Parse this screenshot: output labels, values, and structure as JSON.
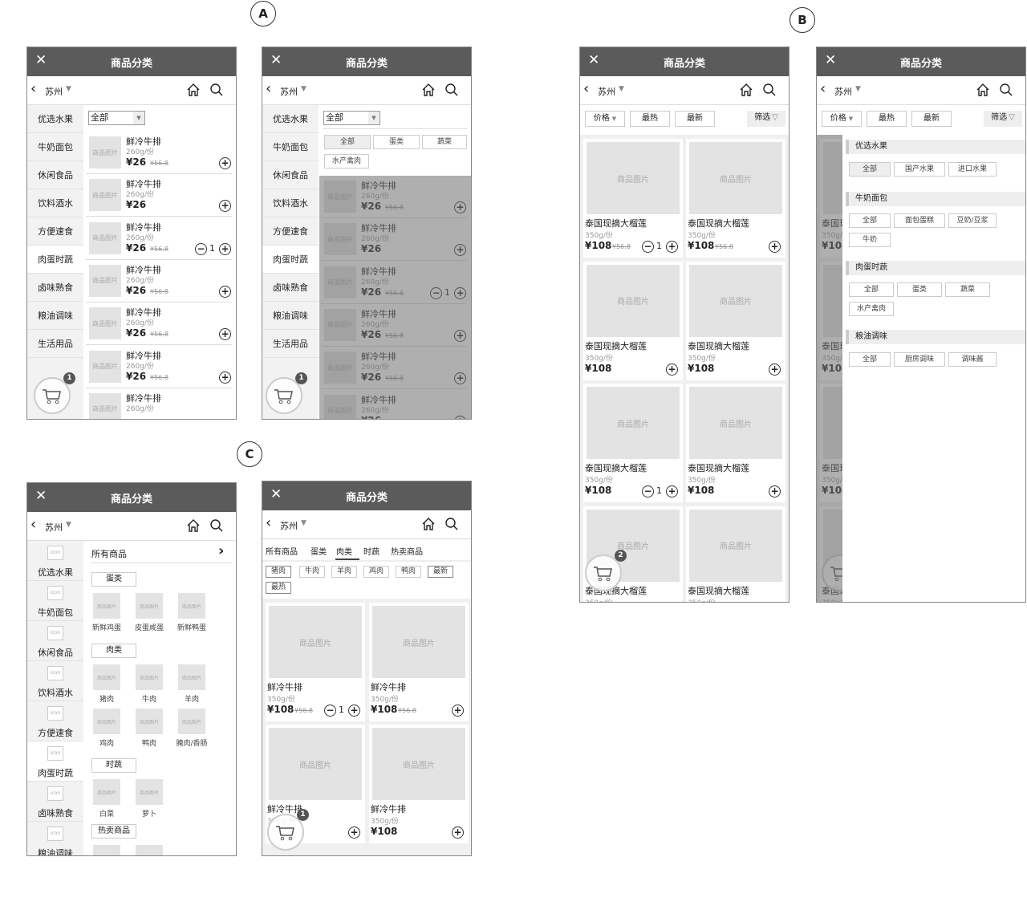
{
  "labels": {
    "a": "A",
    "b": "B",
    "c": "C"
  },
  "common": {
    "title": "商品分类",
    "city": "苏州",
    "close_icon": "close-icon",
    "back_icon": "chevron-left-icon",
    "home_icon": "home-icon",
    "search_icon": "search-icon",
    "header_color": "#5b5b5b"
  },
  "side_categories": [
    "优选水果",
    "牛奶面包",
    "休闲食品",
    "饮料酒水",
    "方便速食",
    "肉蛋时蔬",
    "卤味熟食",
    "粮油调味",
    "生活用品"
  ],
  "active_category": "肉蛋时蔬",
  "screen_a": {
    "dropdown_value": "全部",
    "filter_chips": [
      {
        "label": "全部",
        "selected": true
      },
      {
        "label": "蛋类"
      },
      {
        "label": "蔬菜"
      },
      {
        "label": "水产禽肉"
      }
    ],
    "cart_count": "1",
    "image_placeholder": "商品图片",
    "products": [
      {
        "name": "鲜冷牛排",
        "weight": "260g/份",
        "price": "¥26",
        "old_price": "¥56.8"
      },
      {
        "name": "鲜冷牛排",
        "weight": "260g/份",
        "price": "¥26"
      },
      {
        "name": "鲜冷牛排",
        "weight": "260g/份",
        "price": "¥26",
        "old_price": "¥56.8",
        "qty": "1"
      },
      {
        "name": "鲜冷牛排",
        "weight": "260g/份",
        "price": "¥26",
        "old_price": "¥56.8"
      },
      {
        "name": "鲜冷牛排",
        "weight": "260g/份",
        "price": "¥26",
        "old_price": "¥56.8"
      },
      {
        "name": "鲜冷牛排",
        "weight": "260g/份",
        "price": "¥26",
        "old_price": "¥56.8"
      },
      {
        "name": "鲜冷牛排",
        "weight": "260g/份"
      }
    ]
  },
  "screen_b": {
    "sort_buttons": [
      "价格",
      "最热",
      "最新"
    ],
    "filter_label": "筛选",
    "cart_count": "2",
    "image_placeholder": "商品图片",
    "products": [
      {
        "name": "泰国现摘大榴莲",
        "weight": "350g/份",
        "price": "¥108",
        "old_price": "¥56.8",
        "qty": "1"
      },
      {
        "name": "泰国现摘大榴莲",
        "weight": "350g/份",
        "price": "¥108",
        "old_price": "¥56.8"
      },
      {
        "name": "泰国现摘大榴莲",
        "weight": "350g/份",
        "price": "¥108"
      },
      {
        "name": "泰国现摘大榴莲",
        "weight": "350g/份",
        "price": "¥108"
      },
      {
        "name": "泰国现摘大榴莲",
        "weight": "350g/份",
        "price": "¥108",
        "qty": "1"
      },
      {
        "name": "泰国现摘大榴莲",
        "weight": "350g/份",
        "price": "¥108"
      },
      {
        "name": "泰国现摘大榴莲",
        "weight": "350g/份"
      },
      {
        "name": "泰国现摘大榴莲",
        "weight": "350g/份"
      }
    ],
    "filter_panel": [
      {
        "title": "优选水果",
        "chips": [
          "全部",
          "国产水果",
          "进口水果"
        ]
      },
      {
        "title": "牛奶面包",
        "chips": [
          "全部",
          "面包蛋糕",
          "豆奶/豆浆",
          "牛奶"
        ]
      },
      {
        "title": "肉蛋时蔬",
        "chips": [
          "全部",
          "蛋类",
          "蔬菜",
          "水产禽肉"
        ]
      },
      {
        "title": "粮油调味",
        "chips": [
          "全部",
          "厨房调味",
          "调味酱"
        ]
      }
    ]
  },
  "screen_c": {
    "icon_placeholder": "icon",
    "all_products": "所有商品",
    "image_placeholder": "商品图片",
    "sections": [
      {
        "title": "蛋类",
        "items": [
          "新鲜鸡蛋",
          "皮蛋咸蛋",
          "新鲜鸭蛋"
        ]
      },
      {
        "title": "肉类",
        "items": [
          "猪肉",
          "牛肉",
          "羊肉",
          "鸡肉",
          "鸭肉",
          "腌肉/香肠"
        ]
      },
      {
        "title": "时蔬",
        "items": [
          "白菜",
          "萝卜"
        ]
      },
      {
        "title": "热卖商品",
        "items": [
          "",
          ""
        ]
      }
    ],
    "tabs": [
      "所有商品",
      "蛋类",
      "肉类",
      "时蔬",
      "热卖商品"
    ],
    "active_tab": "肉类",
    "chips": [
      "猪肉",
      "牛肉",
      "羊肉",
      "鸡肉",
      "鸭肉",
      "最新",
      "最热"
    ],
    "selected_chip": "猪肉",
    "cart_count": "1",
    "products": [
      {
        "name": "鲜冷牛排",
        "weight": "350g/份",
        "price": "¥108",
        "old_price": "¥56.8",
        "qty": "1"
      },
      {
        "name": "鲜冷牛排",
        "weight": "350g/份",
        "price": "¥108",
        "old_price": "¥56.8"
      },
      {
        "name": "鲜冷牛排",
        "weight": "350g/份"
      },
      {
        "name": "鲜冷牛排",
        "weight": "350g/份",
        "price": "¥108"
      }
    ]
  }
}
